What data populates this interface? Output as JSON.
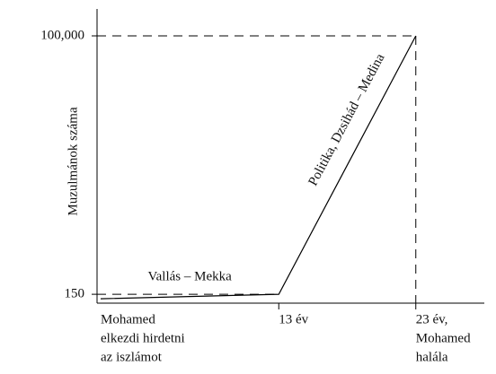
{
  "chart_data": {
    "type": "line",
    "y_label": "Muzulmánok száma",
    "x": [
      0,
      13,
      23
    ],
    "series": [
      {
        "color": "#000000",
        "values": [
          134,
          150,
          100000
        ]
      }
    ],
    "xlim": [
      0,
      28
    ],
    "xticks": [
      {
        "value": 0,
        "label": [
          "Mohamed",
          "elkezdi hirdetni",
          "az iszlámot"
        ]
      },
      {
        "value": 13,
        "label": [
          "13 év"
        ]
      },
      {
        "value": 23,
        "label": [
          "23 év,",
          "Mohamed",
          "halála"
        ]
      }
    ],
    "ylim": [
      120,
      100000
    ],
    "yticks": [
      150,
      {
        "value": 100000,
        "label": "100,000"
      }
    ],
    "log_scale_y": true,
    "annotations": [
      {
        "text": "Vallás – Mekka",
        "x": 6.5,
        "y": 160
      },
      {
        "text": "Politika, Dzsihád – Medina",
        "x": 18,
        "y": 12000
      }
    ]
  }
}
